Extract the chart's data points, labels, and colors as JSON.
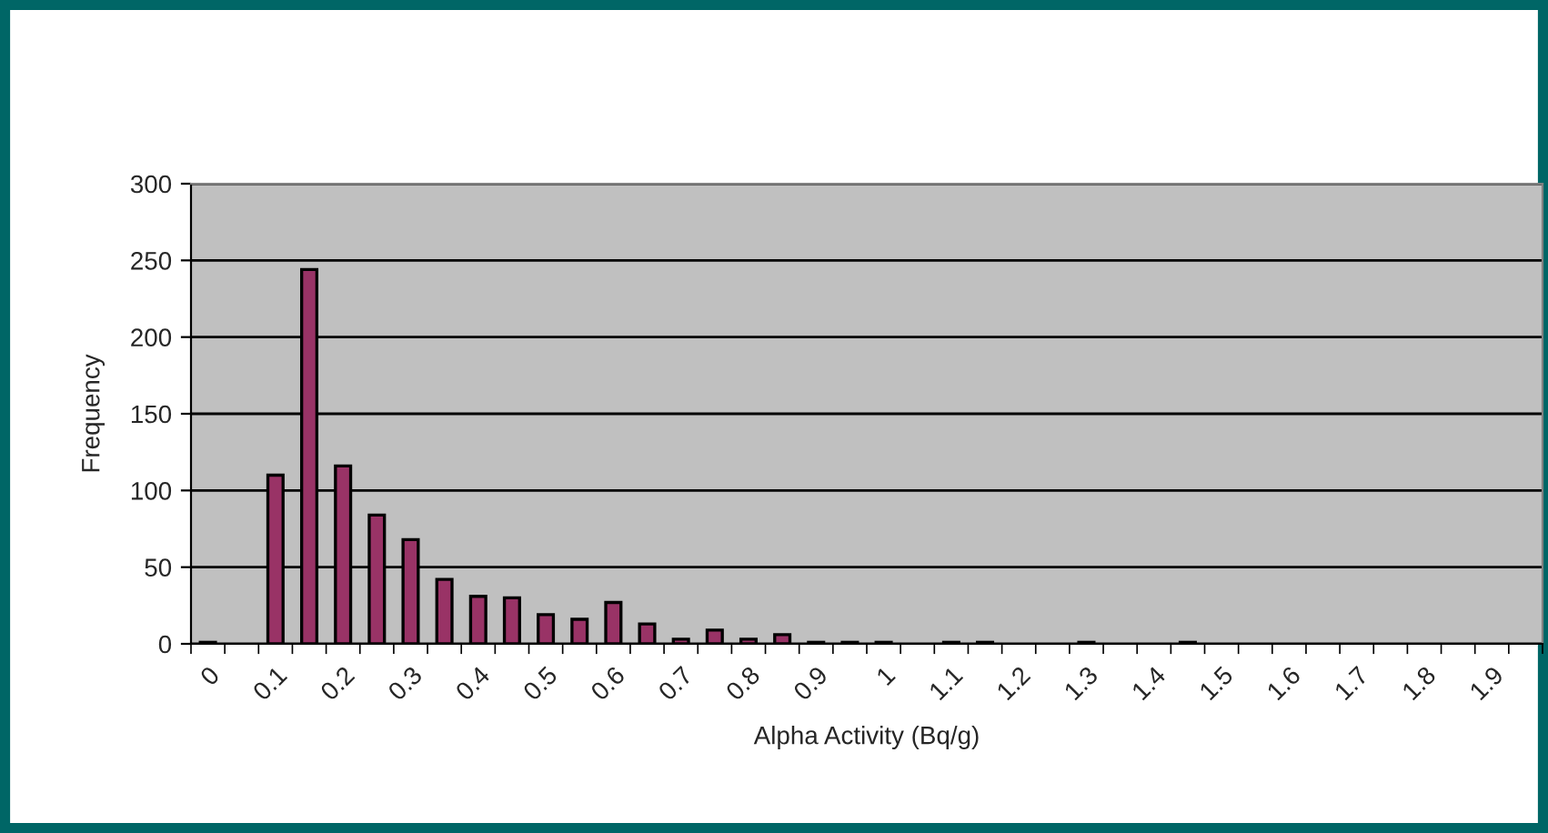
{
  "chart_data": {
    "type": "bar",
    "xlabel": "Alpha Activity (Bq/g)",
    "ylabel": "Frequency",
    "categories": [
      "0",
      null,
      "0.1",
      null,
      "0.2",
      null,
      "0.3",
      null,
      "0.4",
      null,
      "0.5",
      null,
      "0.6",
      null,
      "0.7",
      null,
      "0.8",
      null,
      "0.9",
      null,
      "1",
      null,
      "1.1",
      null,
      "1.2",
      null,
      "1.3",
      null,
      "1.4",
      null,
      "1.5",
      null,
      "1.6",
      null,
      "1.7",
      null,
      "1.8",
      null,
      "1.9",
      null
    ],
    "values": [
      1,
      0,
      110,
      244,
      116,
      84,
      68,
      42,
      31,
      30,
      19,
      16,
      27,
      13,
      3,
      9,
      3,
      6,
      1,
      1,
      1,
      0,
      1,
      1,
      0,
      0,
      1,
      0,
      0,
      1,
      0,
      0,
      0,
      0,
      0,
      0,
      0,
      0,
      0,
      0
    ],
    "color": "#993366",
    "ylim": [
      0,
      300
    ],
    "yticks": [
      0,
      50,
      100,
      150,
      200,
      250,
      300
    ],
    "grid": "y",
    "legend": false
  }
}
